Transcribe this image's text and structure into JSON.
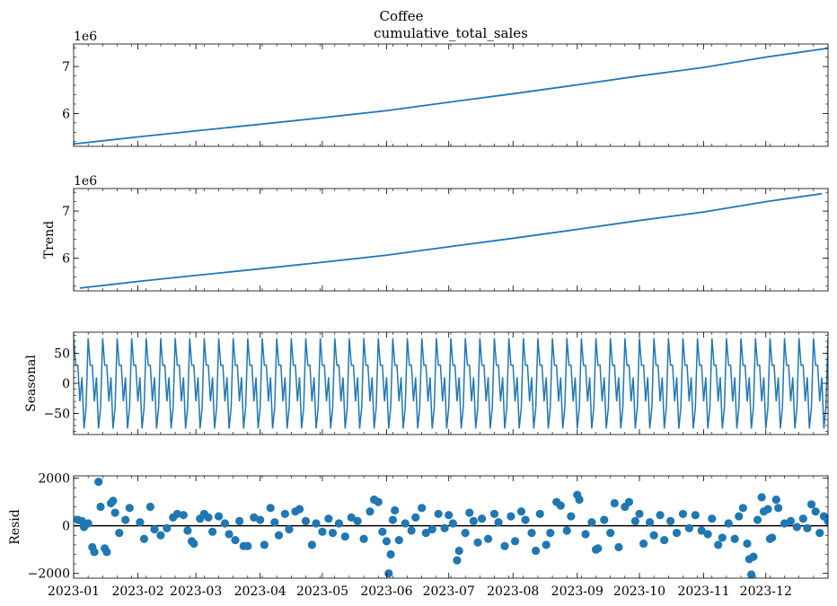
{
  "figure": {
    "suptitle": "Coffee",
    "title": "cumulative_total_sales"
  },
  "colors": {
    "series": "#1f77b4",
    "zero_line": "#000000",
    "axis": "#000000"
  },
  "chart_data": [
    {
      "type": "line",
      "panel": "observed",
      "ylabel": "",
      "offset_label": "1e6",
      "ylim": [
        5.3,
        7.48
      ],
      "yticks": [
        6,
        7
      ],
      "ytick_labels": [
        "6",
        "7"
      ],
      "x": [
        "2023-01-01",
        "2023-02-01",
        "2023-03-01",
        "2023-04-01",
        "2023-05-01",
        "2023-06-01",
        "2023-07-01",
        "2023-08-01",
        "2023-09-01",
        "2023-10-01",
        "2023-11-01",
        "2023-12-01",
        "2023-12-31"
      ],
      "values": [
        5.35,
        5.5,
        5.63,
        5.77,
        5.91,
        6.06,
        6.24,
        6.42,
        6.61,
        6.8,
        6.98,
        7.2,
        7.39
      ]
    },
    {
      "type": "line",
      "panel": "trend",
      "ylabel": "Trend",
      "offset_label": "1e6",
      "ylim": [
        5.3,
        7.48
      ],
      "yticks": [
        6,
        7
      ],
      "ytick_labels": [
        "6",
        "7"
      ],
      "x": [
        "2023-01-04",
        "2023-02-01",
        "2023-03-01",
        "2023-04-01",
        "2023-05-01",
        "2023-06-01",
        "2023-07-01",
        "2023-08-01",
        "2023-09-01",
        "2023-10-01",
        "2023-11-01",
        "2023-12-01",
        "2023-12-28"
      ],
      "values": [
        5.36,
        5.5,
        5.63,
        5.77,
        5.91,
        6.06,
        6.24,
        6.42,
        6.61,
        6.8,
        6.98,
        7.2,
        7.37
      ]
    },
    {
      "type": "line",
      "panel": "seasonal",
      "ylabel": "Seasonal",
      "ylim": [
        -85,
        85
      ],
      "yticks": [
        -50,
        0,
        50
      ],
      "ytick_labels": [
        "−50",
        "0",
        "50"
      ],
      "period_days": 7,
      "x_range": [
        "2023-01-01",
        "2023-12-31"
      ],
      "weekly_pattern": [
        75,
        30,
        30,
        -30,
        10,
        -75,
        -40
      ]
    },
    {
      "type": "scatter",
      "panel": "resid",
      "ylabel": "Resid",
      "ylim": [
        -2200,
        2100
      ],
      "yticks": [
        -2000,
        0,
        2000
      ],
      "ytick_labels": [
        "−2000",
        "0",
        "2000"
      ],
      "zero_line": true,
      "xtick_labels": [
        "2023-01",
        "2023-02",
        "2023-03",
        "2023-04",
        "2023-05",
        "2023-06",
        "2023-07",
        "2023-08",
        "2023-09",
        "2023-10",
        "2023-11",
        "2023-12"
      ],
      "points": [
        {
          "x": "2023-01-03",
          "y": 250
        },
        {
          "x": "2023-01-05",
          "y": 200
        },
        {
          "x": "2023-01-06",
          "y": -50
        },
        {
          "x": "2023-01-08",
          "y": 100
        },
        {
          "x": "2023-01-10",
          "y": -900
        },
        {
          "x": "2023-01-11",
          "y": -1100
        },
        {
          "x": "2023-01-13",
          "y": 1850
        },
        {
          "x": "2023-01-14",
          "y": 800
        },
        {
          "x": "2023-01-16",
          "y": -950
        },
        {
          "x": "2023-01-17",
          "y": -1100
        },
        {
          "x": "2023-01-19",
          "y": 950
        },
        {
          "x": "2023-01-20",
          "y": 1050
        },
        {
          "x": "2023-01-21",
          "y": 550
        },
        {
          "x": "2023-01-23",
          "y": -300
        },
        {
          "x": "2023-01-26",
          "y": 250
        },
        {
          "x": "2023-01-28",
          "y": 750
        },
        {
          "x": "2023-02-02",
          "y": 150
        },
        {
          "x": "2023-02-04",
          "y": -550
        },
        {
          "x": "2023-02-07",
          "y": 800
        },
        {
          "x": "2023-02-09",
          "y": -150
        },
        {
          "x": "2023-02-12",
          "y": -400
        },
        {
          "x": "2023-02-15",
          "y": -100
        },
        {
          "x": "2023-02-18",
          "y": 350
        },
        {
          "x": "2023-02-20",
          "y": 500
        },
        {
          "x": "2023-02-23",
          "y": 450
        },
        {
          "x": "2023-02-25",
          "y": -200
        },
        {
          "x": "2023-02-27",
          "y": -650
        },
        {
          "x": "2023-02-28",
          "y": -750
        },
        {
          "x": "2023-03-03",
          "y": 300
        },
        {
          "x": "2023-03-05",
          "y": 500
        },
        {
          "x": "2023-03-07",
          "y": 350
        },
        {
          "x": "2023-03-09",
          "y": -250
        },
        {
          "x": "2023-03-12",
          "y": 400
        },
        {
          "x": "2023-03-15",
          "y": 100
        },
        {
          "x": "2023-03-17",
          "y": -350
        },
        {
          "x": "2023-03-20",
          "y": -600
        },
        {
          "x": "2023-03-22",
          "y": 200
        },
        {
          "x": "2023-03-24",
          "y": -850
        },
        {
          "x": "2023-03-26",
          "y": -850
        },
        {
          "x": "2023-03-29",
          "y": 350
        },
        {
          "x": "2023-04-01",
          "y": 250
        },
        {
          "x": "2023-04-03",
          "y": -800
        },
        {
          "x": "2023-04-06",
          "y": 750
        },
        {
          "x": "2023-04-08",
          "y": 150
        },
        {
          "x": "2023-04-10",
          "y": -400
        },
        {
          "x": "2023-04-13",
          "y": 500
        },
        {
          "x": "2023-04-15",
          "y": -150
        },
        {
          "x": "2023-04-18",
          "y": 600
        },
        {
          "x": "2023-04-20",
          "y": 700
        },
        {
          "x": "2023-04-23",
          "y": 200
        },
        {
          "x": "2023-04-26",
          "y": -800
        },
        {
          "x": "2023-04-28",
          "y": 100
        },
        {
          "x": "2023-05-01",
          "y": -250
        },
        {
          "x": "2023-05-04",
          "y": 300
        },
        {
          "x": "2023-05-06",
          "y": -300
        },
        {
          "x": "2023-05-09",
          "y": 100
        },
        {
          "x": "2023-05-12",
          "y": -450
        },
        {
          "x": "2023-05-15",
          "y": 350
        },
        {
          "x": "2023-05-18",
          "y": 200
        },
        {
          "x": "2023-05-21",
          "y": -550
        },
        {
          "x": "2023-05-24",
          "y": 600
        },
        {
          "x": "2023-05-26",
          "y": 1100
        },
        {
          "x": "2023-05-28",
          "y": 1000
        },
        {
          "x": "2023-05-30",
          "y": -250
        },
        {
          "x": "2023-06-01",
          "y": -650
        },
        {
          "x": "2023-06-02",
          "y": -2000
        },
        {
          "x": "2023-06-03",
          "y": -1200
        },
        {
          "x": "2023-06-04",
          "y": 250
        },
        {
          "x": "2023-06-05",
          "y": 650
        },
        {
          "x": "2023-06-07",
          "y": -600
        },
        {
          "x": "2023-06-10",
          "y": 100
        },
        {
          "x": "2023-06-13",
          "y": -200
        },
        {
          "x": "2023-06-15",
          "y": 350
        },
        {
          "x": "2023-06-18",
          "y": 750
        },
        {
          "x": "2023-06-20",
          "y": -300
        },
        {
          "x": "2023-06-23",
          "y": -150
        },
        {
          "x": "2023-06-26",
          "y": 500
        },
        {
          "x": "2023-06-29",
          "y": -100
        },
        {
          "x": "2023-07-01",
          "y": 450
        },
        {
          "x": "2023-07-03",
          "y": 100
        },
        {
          "x": "2023-07-05",
          "y": -1450
        },
        {
          "x": "2023-07-06",
          "y": -1050
        },
        {
          "x": "2023-07-09",
          "y": -300
        },
        {
          "x": "2023-07-11",
          "y": 550
        },
        {
          "x": "2023-07-13",
          "y": 200
        },
        {
          "x": "2023-07-15",
          "y": -700
        },
        {
          "x": "2023-07-17",
          "y": 300
        },
        {
          "x": "2023-07-20",
          "y": -550
        },
        {
          "x": "2023-07-23",
          "y": 500
        },
        {
          "x": "2023-07-25",
          "y": 150
        },
        {
          "x": "2023-07-28",
          "y": -850
        },
        {
          "x": "2023-07-31",
          "y": 400
        },
        {
          "x": "2023-08-02",
          "y": -650
        },
        {
          "x": "2023-08-05",
          "y": 600
        },
        {
          "x": "2023-08-07",
          "y": 250
        },
        {
          "x": "2023-08-10",
          "y": -300
        },
        {
          "x": "2023-08-12",
          "y": -1050
        },
        {
          "x": "2023-08-14",
          "y": 500
        },
        {
          "x": "2023-08-17",
          "y": -800
        },
        {
          "x": "2023-08-19",
          "y": -300
        },
        {
          "x": "2023-08-22",
          "y": 1000
        },
        {
          "x": "2023-08-24",
          "y": 850
        },
        {
          "x": "2023-08-27",
          "y": -200
        },
        {
          "x": "2023-08-29",
          "y": 400
        },
        {
          "x": "2023-09-01",
          "y": 1300
        },
        {
          "x": "2023-09-02",
          "y": 1100
        },
        {
          "x": "2023-09-05",
          "y": -350
        },
        {
          "x": "2023-09-08",
          "y": 150
        },
        {
          "x": "2023-09-10",
          "y": -1000
        },
        {
          "x": "2023-09-11",
          "y": -950
        },
        {
          "x": "2023-09-14",
          "y": 250
        },
        {
          "x": "2023-09-17",
          "y": -300
        },
        {
          "x": "2023-09-19",
          "y": 950
        },
        {
          "x": "2023-09-21",
          "y": -900
        },
        {
          "x": "2023-09-24",
          "y": 800
        },
        {
          "x": "2023-09-26",
          "y": 1000
        },
        {
          "x": "2023-09-29",
          "y": 200
        },
        {
          "x": "2023-10-01",
          "y": 500
        },
        {
          "x": "2023-10-03",
          "y": -750
        },
        {
          "x": "2023-10-06",
          "y": 150
        },
        {
          "x": "2023-10-08",
          "y": -400
        },
        {
          "x": "2023-10-11",
          "y": 450
        },
        {
          "x": "2023-10-13",
          "y": -600
        },
        {
          "x": "2023-10-16",
          "y": 200
        },
        {
          "x": "2023-10-19",
          "y": -300
        },
        {
          "x": "2023-10-22",
          "y": 500
        },
        {
          "x": "2023-10-25",
          "y": -100
        },
        {
          "x": "2023-10-28",
          "y": 450
        },
        {
          "x": "2023-10-31",
          "y": -200
        },
        {
          "x": "2023-11-03",
          "y": -350
        },
        {
          "x": "2023-11-05",
          "y": 300
        },
        {
          "x": "2023-11-08",
          "y": -800
        },
        {
          "x": "2023-11-10",
          "y": -500
        },
        {
          "x": "2023-11-13",
          "y": 100
        },
        {
          "x": "2023-11-16",
          "y": -550
        },
        {
          "x": "2023-11-18",
          "y": 400
        },
        {
          "x": "2023-11-20",
          "y": 750
        },
        {
          "x": "2023-11-22",
          "y": -750
        },
        {
          "x": "2023-11-23",
          "y": -1400
        },
        {
          "x": "2023-11-24",
          "y": -2050
        },
        {
          "x": "2023-11-25",
          "y": -1300
        },
        {
          "x": "2023-11-27",
          "y": 250
        },
        {
          "x": "2023-11-29",
          "y": 1200
        },
        {
          "x": "2023-11-30",
          "y": 600
        },
        {
          "x": "2023-12-02",
          "y": 700
        },
        {
          "x": "2023-12-03",
          "y": -550
        },
        {
          "x": "2023-12-04",
          "y": -500
        },
        {
          "x": "2023-12-06",
          "y": 1100
        },
        {
          "x": "2023-12-07",
          "y": 750
        },
        {
          "x": "2023-12-10",
          "y": 100
        },
        {
          "x": "2023-12-13",
          "y": 200
        },
        {
          "x": "2023-12-16",
          "y": -50
        },
        {
          "x": "2023-12-19",
          "y": 300
        },
        {
          "x": "2023-12-21",
          "y": -100
        },
        {
          "x": "2023-12-23",
          "y": 900
        },
        {
          "x": "2023-12-25",
          "y": 600
        },
        {
          "x": "2023-12-27",
          "y": -300
        },
        {
          "x": "2023-12-29",
          "y": 400
        },
        {
          "x": "2023-12-31",
          "y": 200
        }
      ]
    }
  ]
}
